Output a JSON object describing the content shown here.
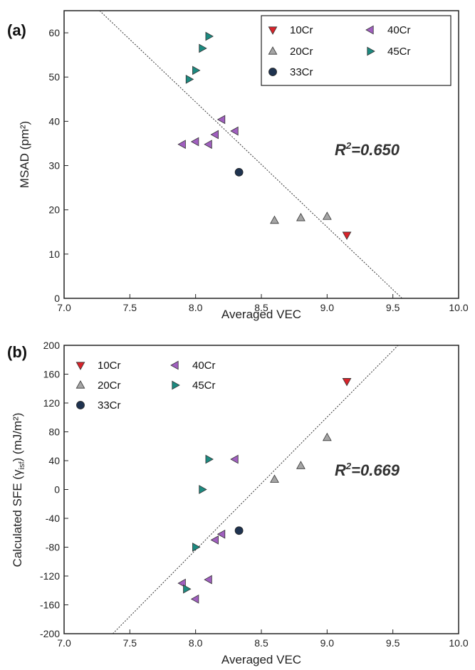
{
  "colors": {
    "10Cr": "#d9232a",
    "20Cr": "#a5a5a5",
    "33Cr": "#1f3350",
    "40Cr": "#a05fbf",
    "45Cr": "#1c8a80"
  },
  "chart_data": [
    {
      "type": "scatter",
      "panel_label": "(a)",
      "xlabel": "Averaged VEC",
      "ylabel": "MSAD (pm²)",
      "xlim": [
        7.0,
        10.0
      ],
      "ylim": [
        0,
        65
      ],
      "xticks": [
        "7.0",
        "7.5",
        "8.0",
        "8.5",
        "9.0",
        "9.5",
        "10.0"
      ],
      "yticks": [
        "0",
        "10",
        "20",
        "30",
        "40",
        "50",
        "60"
      ],
      "annotation": {
        "r": "R",
        "sup": "2",
        "val": "=0.650"
      },
      "legend_position": "top-right",
      "legend": [
        "10Cr",
        "40Cr",
        "20Cr",
        "45Cr",
        "33Cr"
      ],
      "fit_line": {
        "x": [
          7.27,
          9.57
        ],
        "y": [
          65,
          0
        ]
      },
      "series": [
        {
          "name": "10Cr",
          "marker": "triangle-down",
          "x": [
            9.15
          ],
          "y": [
            14.3
          ]
        },
        {
          "name": "20Cr",
          "marker": "triangle-up",
          "x": [
            8.6,
            8.8,
            9.0
          ],
          "y": [
            17.6,
            18.2,
            18.5
          ]
        },
        {
          "name": "33Cr",
          "marker": "circle",
          "x": [
            8.33
          ],
          "y": [
            28.5
          ]
        },
        {
          "name": "40Cr",
          "marker": "triangle-left",
          "x": [
            7.9,
            8.0,
            8.1,
            8.15,
            8.2,
            8.3
          ],
          "y": [
            34.8,
            35.4,
            34.8,
            37.0,
            40.4,
            37.8
          ]
        },
        {
          "name": "45Cr",
          "marker": "triangle-right",
          "x": [
            7.95,
            8.0,
            8.05,
            8.1
          ],
          "y": [
            49.5,
            51.5,
            56.5,
            59.2
          ]
        }
      ]
    },
    {
      "type": "scatter",
      "panel_label": "(b)",
      "xlabel": "Averaged VEC",
      "ylabel_main": "Calculated SFE (γ",
      "ylabel_sub": "isf",
      "ylabel_tail": ") (mJ/m²)",
      "xlim": [
        7.0,
        10.0
      ],
      "ylim": [
        -200,
        200
      ],
      "xticks": [
        "7.0",
        "7.5",
        "8.0",
        "8.5",
        "9.0",
        "9.5",
        "10.0"
      ],
      "yticks": [
        "-200",
        "-160",
        "-120",
        "-80",
        "-40",
        "0",
        "40",
        "80",
        "120",
        "160",
        "200"
      ],
      "annotation": {
        "r": "R",
        "sup": "2",
        "val": "=0.669"
      },
      "legend_position": "top-left",
      "legend": [
        "10Cr",
        "40Cr",
        "20Cr",
        "45Cr",
        "33Cr"
      ],
      "fit_line": {
        "x": [
          7.37,
          9.54
        ],
        "y": [
          -200,
          200
        ]
      },
      "series": [
        {
          "name": "10Cr",
          "marker": "triangle-down",
          "x": [
            9.15
          ],
          "y": [
            150
          ]
        },
        {
          "name": "20Cr",
          "marker": "triangle-up",
          "x": [
            8.6,
            8.8,
            9.0
          ],
          "y": [
            14,
            33,
            72
          ]
        },
        {
          "name": "33Cr",
          "marker": "circle",
          "x": [
            8.33
          ],
          "y": [
            -57
          ]
        },
        {
          "name": "40Cr",
          "marker": "triangle-left",
          "x": [
            7.9,
            8.0,
            8.1,
            8.15,
            8.2,
            8.3
          ],
          "y": [
            -130,
            -152,
            -125,
            -70,
            -62,
            42
          ]
        },
        {
          "name": "45Cr",
          "marker": "triangle-right",
          "x": [
            7.93,
            8.0,
            8.05,
            8.1
          ],
          "y": [
            -138,
            -80,
            0,
            42
          ]
        }
      ]
    }
  ]
}
